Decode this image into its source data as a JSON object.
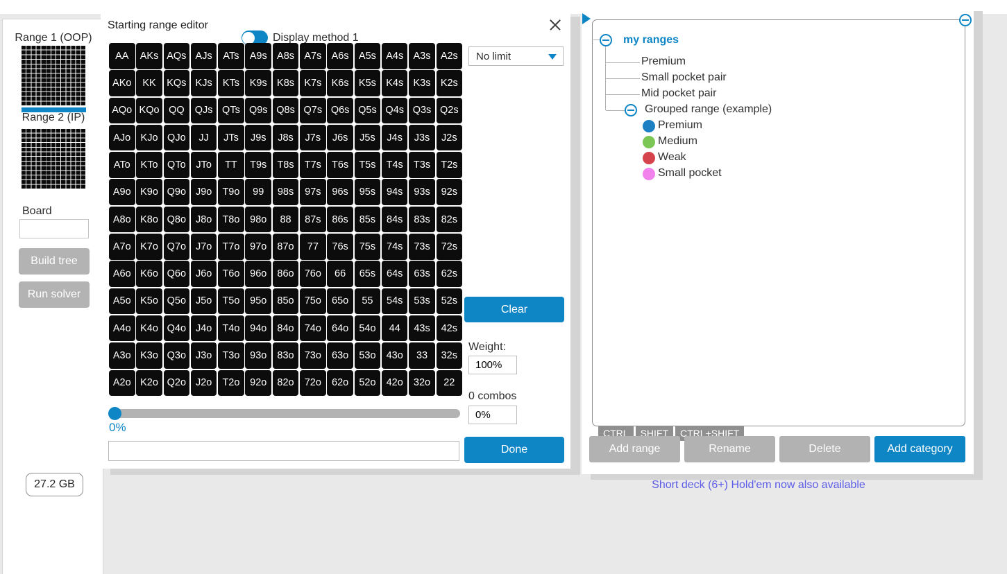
{
  "colors": {
    "accent": "#0e86c6",
    "cell_bg": "#0c0c0c",
    "disabled_gray": "#b3b3b3",
    "tab_gray": "#8f8f8f",
    "promo_text": "#5d5de8"
  },
  "sidebar": {
    "range1_label": "Range 1 (OOP)",
    "range2_label": "Range 2 (IP)",
    "board_label": "Board",
    "board_value": "",
    "build_tree_label": "Build tree",
    "run_solver_label": "Run solver",
    "memory_text": "27.2 GB"
  },
  "dialog": {
    "title": "Starting range editor",
    "toggle_label": "Display method 1",
    "game_type_value": "No limit",
    "clear_label": "Clear",
    "weight_label": "Weight:",
    "weight_value": "100%",
    "combos_label": "0 combos",
    "combos_value": "0%",
    "slider_value": "0%",
    "range_text_value": "",
    "done_label": "Done",
    "grid": [
      [
        "AA",
        "AKs",
        "AQs",
        "AJs",
        "ATs",
        "A9s",
        "A8s",
        "A7s",
        "A6s",
        "A5s",
        "A4s",
        "A3s",
        "A2s"
      ],
      [
        "AKo",
        "KK",
        "KQs",
        "KJs",
        "KTs",
        "K9s",
        "K8s",
        "K7s",
        "K6s",
        "K5s",
        "K4s",
        "K3s",
        "K2s"
      ],
      [
        "AQo",
        "KQo",
        "QQ",
        "QJs",
        "QTs",
        "Q9s",
        "Q8s",
        "Q7s",
        "Q6s",
        "Q5s",
        "Q4s",
        "Q3s",
        "Q2s"
      ],
      [
        "AJo",
        "KJo",
        "QJo",
        "JJ",
        "JTs",
        "J9s",
        "J8s",
        "J7s",
        "J6s",
        "J5s",
        "J4s",
        "J3s",
        "J2s"
      ],
      [
        "ATo",
        "KTo",
        "QTo",
        "JTo",
        "TT",
        "T9s",
        "T8s",
        "T7s",
        "T6s",
        "T5s",
        "T4s",
        "T3s",
        "T2s"
      ],
      [
        "A9o",
        "K9o",
        "Q9o",
        "J9o",
        "T9o",
        "99",
        "98s",
        "97s",
        "96s",
        "95s",
        "94s",
        "93s",
        "92s"
      ],
      [
        "A8o",
        "K8o",
        "Q8o",
        "J8o",
        "T8o",
        "98o",
        "88",
        "87s",
        "86s",
        "85s",
        "84s",
        "83s",
        "82s"
      ],
      [
        "A7o",
        "K7o",
        "Q7o",
        "J7o",
        "T7o",
        "97o",
        "87o",
        "77",
        "76s",
        "75s",
        "74s",
        "73s",
        "72s"
      ],
      [
        "A6o",
        "K6o",
        "Q6o",
        "J6o",
        "T6o",
        "96o",
        "86o",
        "76o",
        "66",
        "65s",
        "64s",
        "63s",
        "62s"
      ],
      [
        "A5o",
        "K5o",
        "Q5o",
        "J5o",
        "T5o",
        "95o",
        "85o",
        "75o",
        "65o",
        "55",
        "54s",
        "53s",
        "52s"
      ],
      [
        "A4o",
        "K4o",
        "Q4o",
        "J4o",
        "T4o",
        "94o",
        "84o",
        "74o",
        "64o",
        "54o",
        "44",
        "43s",
        "42s"
      ],
      [
        "A3o",
        "K3o",
        "Q3o",
        "J3o",
        "T3o",
        "93o",
        "83o",
        "73o",
        "63o",
        "53o",
        "43o",
        "33",
        "32s"
      ],
      [
        "A2o",
        "K2o",
        "Q2o",
        "J2o",
        "T2o",
        "92o",
        "82o",
        "72o",
        "62o",
        "52o",
        "42o",
        "32o",
        "22"
      ]
    ]
  },
  "tree": {
    "root_label": "my ranges",
    "items": [
      "Premium",
      "Small pocket pair",
      "Mid pocket pair"
    ],
    "group_label": "Grouped range (example)",
    "group_children": [
      {
        "label": "Premium",
        "color": "#1d80c3"
      },
      {
        "label": "Medium",
        "color": "#7cc655"
      },
      {
        "label": "Weak",
        "color": "#d5434c"
      },
      {
        "label": "Small pocket",
        "color": "#f283ec"
      }
    ]
  },
  "right_panel": {
    "tabs": [
      "CTRL",
      "SHIFT",
      "CTRL+SHIFT"
    ],
    "buttons": {
      "add_range": "Add range",
      "rename": "Rename",
      "delete": "Delete",
      "add_category": "Add category"
    }
  },
  "footer": {
    "promo_text": "Short deck (6+) Hold'em now also available"
  }
}
